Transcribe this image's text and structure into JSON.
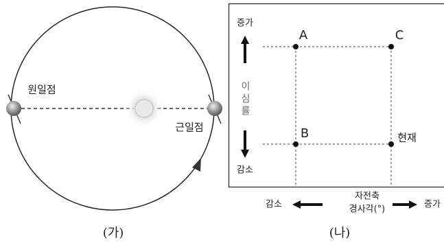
{
  "panel_a": {
    "aphelion": "원일점",
    "perihelion": "근일점",
    "caption": "(가)"
  },
  "panel_b": {
    "y_axis": {
      "increase": "증가",
      "label": "이심률",
      "decrease": "감소"
    },
    "x_axis": {
      "decrease": "감소",
      "label_line1": "자전축",
      "label_line2": "경사각(°)",
      "increase": "증가"
    },
    "points": [
      {
        "label": "A"
      },
      {
        "label": "C"
      },
      {
        "label": "B"
      },
      {
        "label": "현재"
      }
    ],
    "caption": "(나)"
  }
}
